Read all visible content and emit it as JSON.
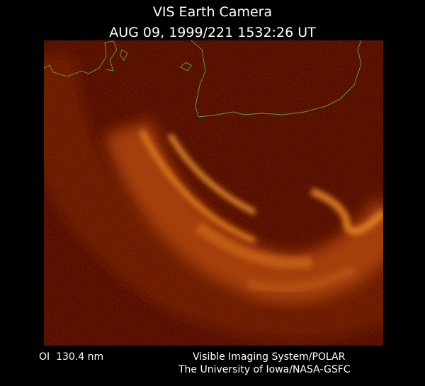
{
  "header": {
    "title": "VIS Earth Camera",
    "subtitle": "AUG 09, 1999/221 1532:26 UT"
  },
  "footer": {
    "wavelength": "OI  130.4 nm",
    "credit_lines": [
      "Visible Imaging System/POLAR",
      "The University of Iowa/NASA-GSFC"
    ]
  }
}
